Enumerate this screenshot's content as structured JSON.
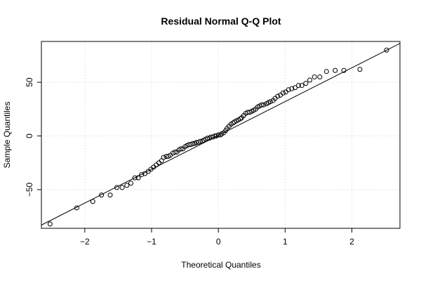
{
  "chart_data": {
    "type": "scatter",
    "title": "Residual Normal Q-Q Plot",
    "xlabel": "Theoretical Quantiles",
    "ylabel": "Sample Quantiles",
    "xlim": [
      -2.65,
      2.72
    ],
    "ylim": [
      -86,
      88
    ],
    "x_ticks": [
      -2,
      -1,
      0,
      1,
      2
    ],
    "x_tick_labels": [
      "−2",
      "−1",
      "0",
      "1",
      "2"
    ],
    "y_ticks": [
      -50,
      0,
      50
    ],
    "y_tick_labels": [
      "−50",
      "0",
      "50"
    ],
    "grid": true,
    "legend": "none",
    "reference_line": {
      "intercept": 0.5,
      "slope": 31.5
    },
    "points": {
      "x": [
        -2.52,
        -2.12,
        -1.88,
        -1.75,
        -1.62,
        -1.52,
        -1.44,
        -1.37,
        -1.31,
        -1.25,
        -1.2,
        -1.15,
        -1.1,
        -1.05,
        -1.01,
        -0.97,
        -0.93,
        -0.89,
        -0.85,
        -0.82,
        -0.78,
        -0.75,
        -0.72,
        -0.68,
        -0.65,
        -0.62,
        -0.59,
        -0.56,
        -0.53,
        -0.5,
        -0.47,
        -0.44,
        -0.41,
        -0.38,
        -0.35,
        -0.33,
        -0.3,
        -0.27,
        -0.24,
        -0.22,
        -0.19,
        -0.16,
        -0.13,
        -0.11,
        -0.08,
        -0.05,
        -0.03,
        0.0,
        0.03,
        0.05,
        0.08,
        0.11,
        0.13,
        0.16,
        0.19,
        0.22,
        0.24,
        0.27,
        0.3,
        0.33,
        0.35,
        0.38,
        0.41,
        0.44,
        0.47,
        0.5,
        0.53,
        0.56,
        0.59,
        0.62,
        0.65,
        0.68,
        0.72,
        0.75,
        0.78,
        0.82,
        0.85,
        0.89,
        0.93,
        0.97,
        1.01,
        1.05,
        1.1,
        1.15,
        1.2,
        1.25,
        1.31,
        1.37,
        1.44,
        1.52,
        1.62,
        1.75,
        1.88,
        2.12,
        2.52
      ],
      "y": [
        -82,
        -67,
        -61,
        -55,
        -55,
        -48,
        -48,
        -46,
        -44,
        -39,
        -39,
        -36,
        -35,
        -33,
        -31,
        -29,
        -27,
        -25,
        -23,
        -20,
        -19,
        -19,
        -18,
        -16,
        -15,
        -15,
        -13,
        -12,
        -12,
        -10,
        -9,
        -8,
        -8,
        -7,
        -7,
        -6,
        -6,
        -5,
        -5,
        -4,
        -3,
        -2,
        -2,
        -1,
        -1,
        0,
        0,
        1,
        1,
        2,
        3,
        5,
        7,
        9,
        11,
        12,
        13,
        14,
        15,
        16,
        17,
        19,
        21,
        22,
        22,
        23,
        24,
        25,
        27,
        28,
        29,
        29,
        30,
        31,
        32,
        33,
        35,
        37,
        38,
        40,
        41,
        43,
        44,
        45,
        47,
        47,
        49,
        52,
        55,
        55,
        60,
        61,
        61,
        62,
        80
      ]
    }
  }
}
